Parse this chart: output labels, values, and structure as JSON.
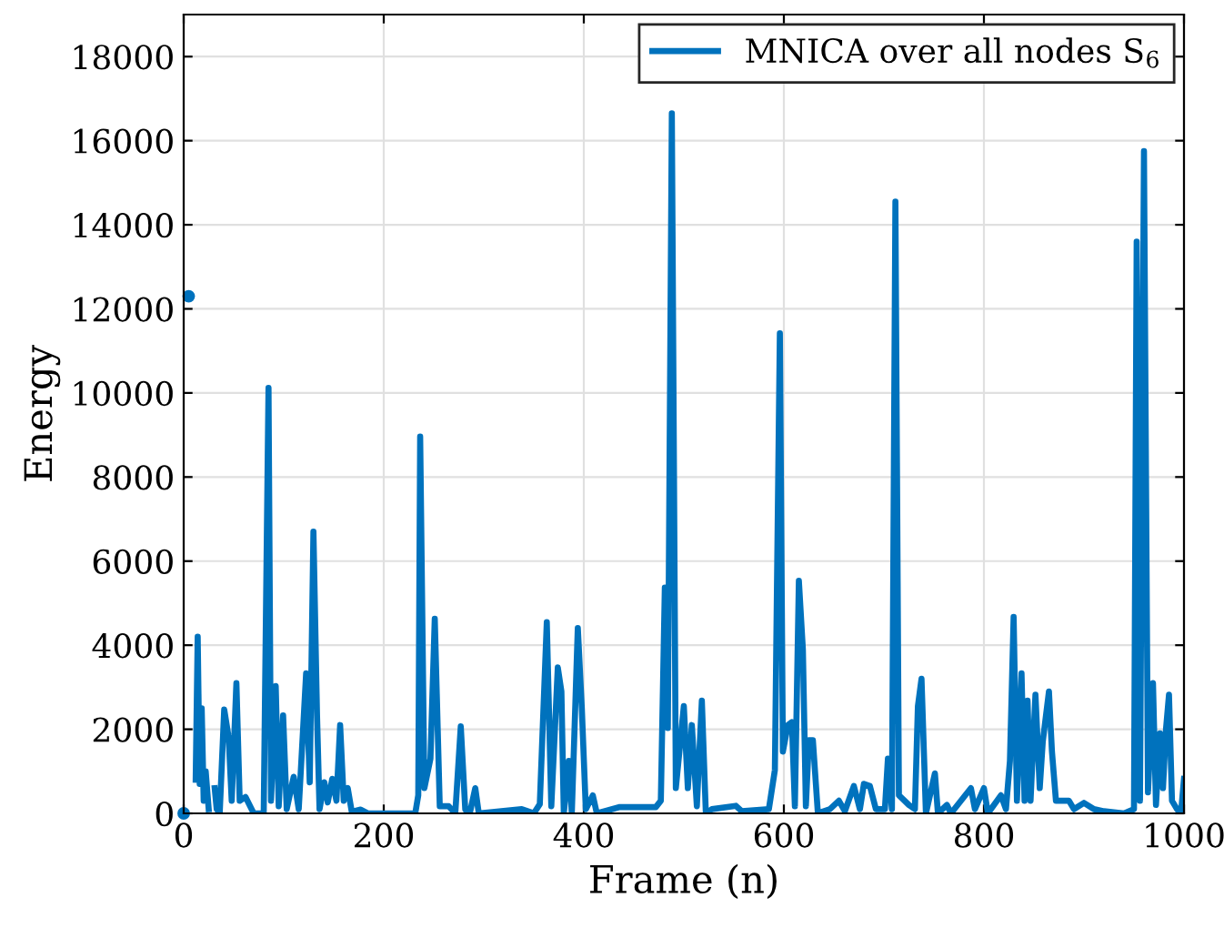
{
  "chart_data": {
    "type": "line",
    "xlabel": "Frame (n)",
    "ylabel": "Energy",
    "series": [
      {
        "name": "MNICA over all nodes S$_{6}$",
        "color": "#0072bd",
        "x": [
          0,
          3,
          5,
          7,
          10,
          12,
          14,
          16,
          18,
          20,
          22,
          25,
          27,
          29,
          31,
          33,
          36,
          40.5,
          45,
          48,
          52.7,
          56,
          61.8,
          70,
          80,
          81.2,
          84.8,
          87.3,
          92,
          95,
          99.4,
          103,
          110,
          115,
          122.4,
          126,
          129.7,
          133.3,
          135.8,
          140.6,
          144,
          148.5,
          152.7,
          156.4,
          160,
          164,
          168,
          177,
          184,
          231.5,
          234.5,
          236.4,
          240.6,
          246.7,
          251,
          256,
          265,
          271.5,
          277,
          281.5,
          286,
          291.5,
          295,
          338,
          350,
          356,
          363,
          367.5,
          374,
          377.6,
          380,
          385,
          388,
          394,
          398,
          402,
          409,
          413,
          436,
          472,
          477,
          481,
          484,
          488,
          492,
          500,
          504,
          508,
          513,
          518,
          522,
          528,
          552,
          558,
          585,
          591,
          596,
          599,
          604,
          608,
          611,
          615,
          619,
          622,
          625,
          629,
          634,
          646,
          655,
          661,
          670,
          676,
          680,
          686,
          692,
          701,
          704,
          708,
          711.5,
          715,
          725,
          731,
          734,
          737.6,
          742,
          751,
          754,
          763,
          767,
          787,
          791,
          800,
          804,
          817,
          822,
          826,
          829.7,
          833,
          837.6,
          840.6,
          843.6,
          846.6,
          851.5,
          855.8,
          858.8,
          865,
          868,
          872,
          885,
          890,
          900,
          910,
          920,
          940,
          950,
          952.7,
          956,
          960,
          964,
          969,
          972,
          976,
          979,
          982,
          985,
          988,
          993,
          997,
          1000
        ],
        "values": [
          0,
          null,
          12300,
          null,
          null,
          800,
          4200,
          700,
          2500,
          300,
          1000,
          100,
          null,
          null,
          600,
          100,
          0,
          2470,
          1800,
          300,
          3100,
          300,
          390,
          0,
          0,
          2550,
          10120,
          300,
          3030,
          170,
          2330,
          100,
          870,
          100,
          3330,
          740,
          6700,
          2330,
          100,
          740,
          260,
          820,
          300,
          2100,
          300,
          600,
          40,
          90,
          0,
          0,
          430,
          8960,
          600,
          1300,
          4630,
          170,
          170,
          0,
          2070,
          90,
          0,
          600,
          0,
          100,
          0,
          220,
          4550,
          170,
          3470,
          2900,
          0,
          1250,
          0,
          4410,
          2500,
          100,
          430,
          0,
          150,
          150,
          300,
          5370,
          2030,
          16650,
          600,
          2550,
          600,
          2100,
          170,
          2680,
          0,
          100,
          180,
          50,
          100,
          1030,
          11420,
          1470,
          2100,
          2170,
          170,
          5530,
          3900,
          170,
          1740,
          1740,
          0,
          100,
          300,
          50,
          650,
          100,
          700,
          650,
          100,
          100,
          1300,
          100,
          14550,
          430,
          200,
          100,
          2550,
          3200,
          0,
          950,
          0,
          200,
          0,
          600,
          100,
          600,
          0,
          430,
          100,
          1250,
          4670,
          300,
          3330,
          300,
          2680,
          300,
          2820,
          600,
          1700,
          2900,
          1470,
          300,
          300,
          100,
          250,
          100,
          50,
          0,
          100,
          13600,
          300,
          15750,
          500,
          3100,
          200,
          1900,
          600,
          2000,
          2820,
          300,
          100,
          0,
          820
        ]
      }
    ],
    "xlim": [
      0,
      1000
    ],
    "ylim": [
      0,
      19000
    ],
    "xticks": [
      0,
      200,
      400,
      600,
      800,
      1000
    ],
    "yticks": [
      0,
      2000,
      4000,
      6000,
      8000,
      10000,
      12000,
      14000,
      16000,
      18000
    ],
    "grid": true,
    "legend": "top right",
    "line_style": "solid",
    "marker": "none"
  }
}
